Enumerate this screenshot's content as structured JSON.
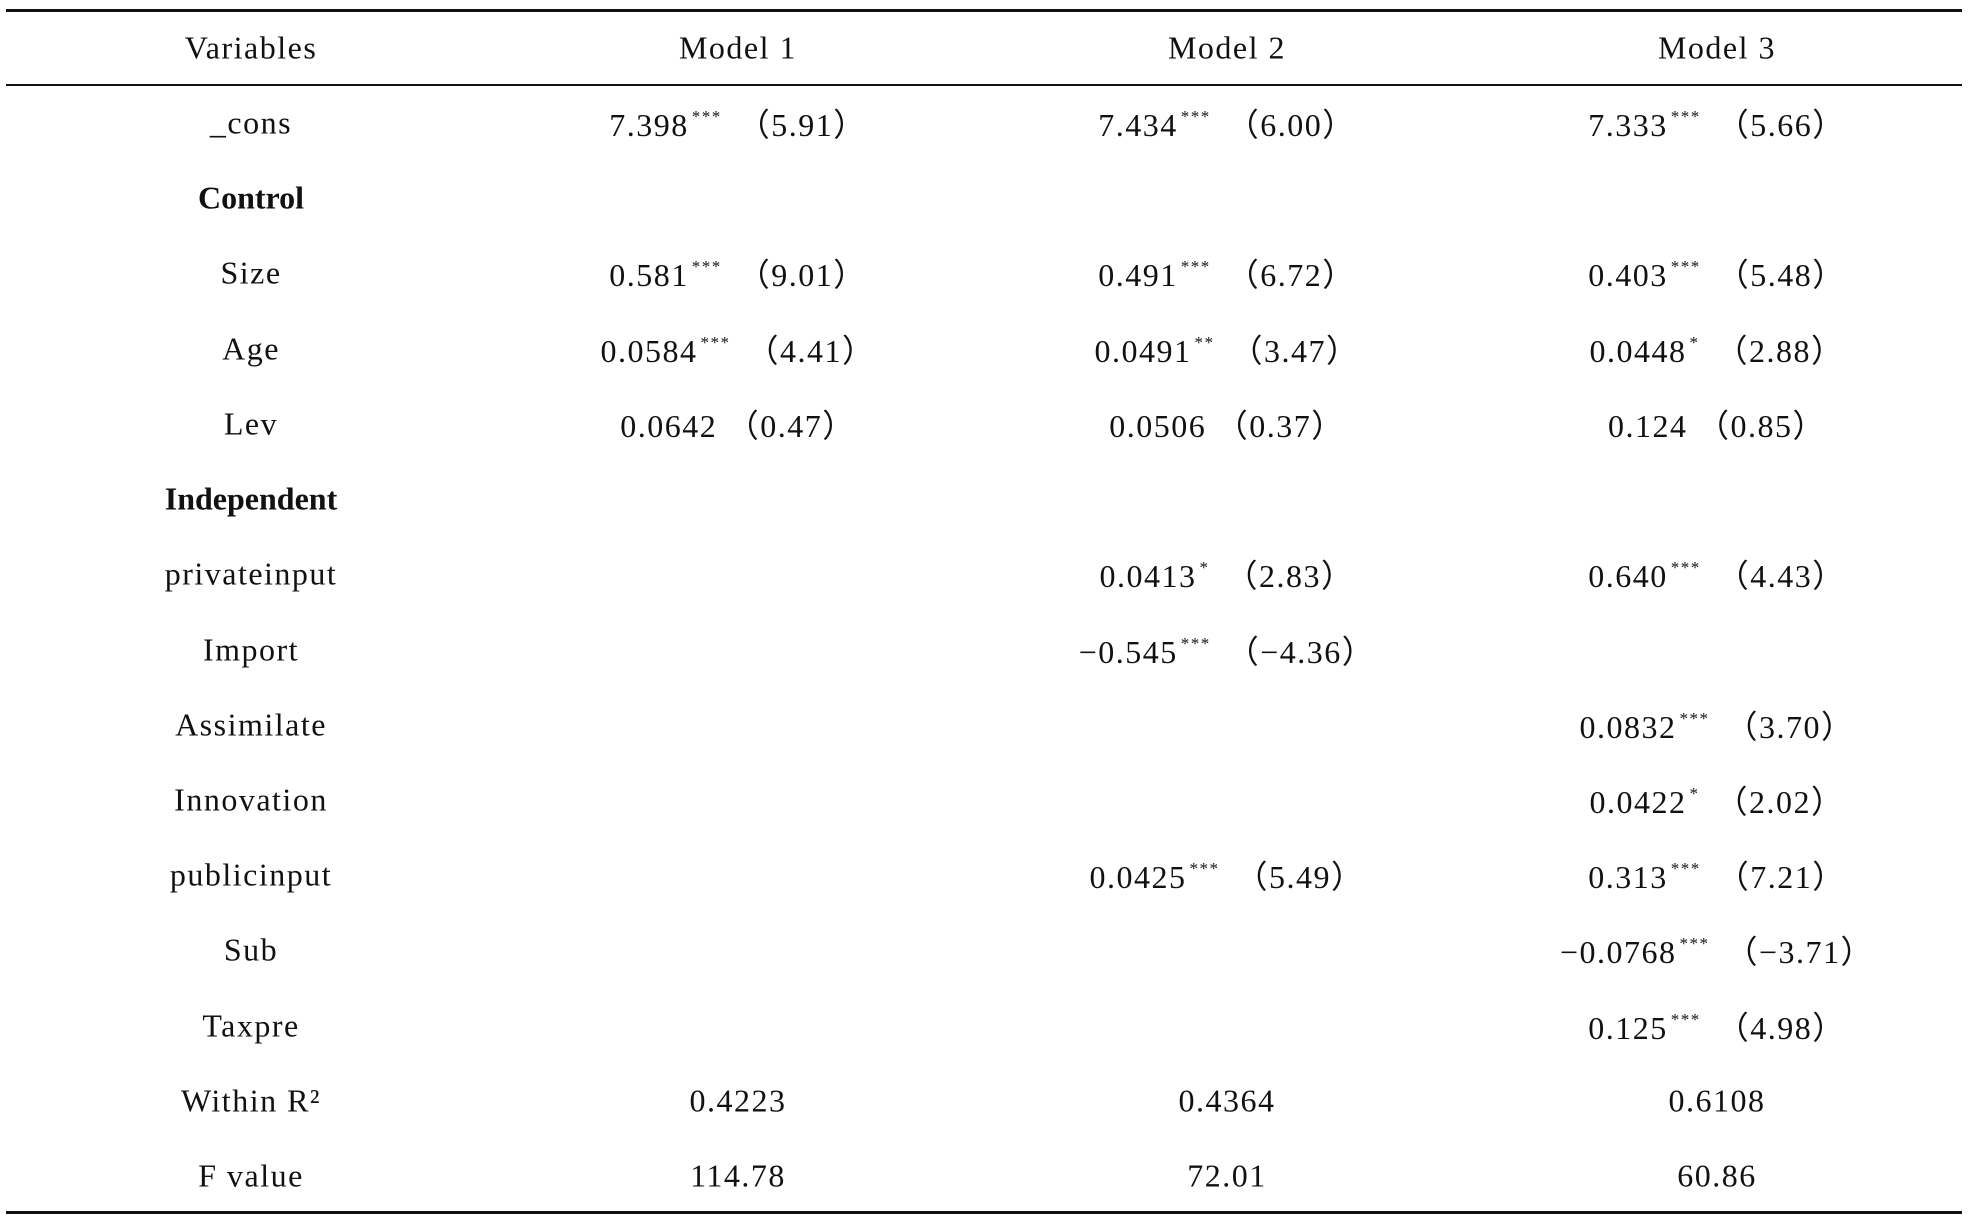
{
  "table": {
    "header": [
      "Variables",
      "Model 1",
      "Model 2",
      "Model 3"
    ],
    "rows": [
      {
        "label": "_cons",
        "cells": [
          {
            "coef": "7.398",
            "stars": "***",
            "t": "（5.91）"
          },
          {
            "coef": "7.434",
            "stars": "***",
            "t": "（6.00）"
          },
          {
            "coef": "7.333",
            "stars": "***",
            "t": "（5.66）"
          }
        ]
      },
      {
        "label": "Control",
        "section": true
      },
      {
        "label": "Size",
        "cells": [
          {
            "coef": "0.581",
            "stars": "***",
            "t": "（9.01）"
          },
          {
            "coef": "0.491",
            "stars": "***",
            "t": "（6.72）"
          },
          {
            "coef": "0.403",
            "stars": "***",
            "t": "（5.48）"
          }
        ]
      },
      {
        "label": "Age",
        "cells": [
          {
            "coef": "0.0584",
            "stars": "***",
            "t": "（4.41）"
          },
          {
            "coef": "0.0491",
            "stars": "**",
            "t": "（3.47）"
          },
          {
            "coef": "0.0448",
            "stars": "*",
            "t": "（2.88）"
          }
        ]
      },
      {
        "label": "Lev",
        "cells": [
          {
            "coef": "0.0642",
            "t": "（0.47）"
          },
          {
            "coef": "0.0506",
            "t": "（0.37）"
          },
          {
            "coef": "0.124",
            "t": "（0.85）"
          }
        ]
      },
      {
        "label": "Independent",
        "section": true
      },
      {
        "label": "privateinput",
        "cells": [
          null,
          {
            "coef": "0.0413",
            "stars": "*",
            "t": "（2.83）"
          },
          {
            "coef": "0.640",
            "stars": "***",
            "t": "（4.43）"
          }
        ]
      },
      {
        "label": "Import",
        "cells": [
          null,
          {
            "coef": "−0.545",
            "stars": "***",
            "t": "（−4.36）"
          },
          null
        ]
      },
      {
        "label": "Assimilate",
        "cells": [
          null,
          null,
          {
            "coef": "0.0832",
            "stars": "***",
            "t": "（3.70）"
          }
        ]
      },
      {
        "label": "Innovation",
        "cells": [
          null,
          null,
          {
            "coef": "0.0422",
            "stars": "*",
            "t": "（2.02）"
          }
        ]
      },
      {
        "label": "publicinput",
        "cells": [
          null,
          {
            "coef": "0.0425",
            "stars": "***",
            "t": "（5.49）"
          },
          {
            "coef": "0.313",
            "stars": "***",
            "t": "（7.21）"
          }
        ]
      },
      {
        "label": "Sub",
        "cells": [
          null,
          null,
          {
            "coef": "−0.0768",
            "stars": "***",
            "t": "（−3.71）"
          }
        ]
      },
      {
        "label": "Taxpre",
        "cells": [
          null,
          null,
          {
            "coef": "0.125",
            "stars": "***",
            "t": "（4.98）"
          }
        ]
      },
      {
        "label": "Within R²",
        "cells": [
          {
            "coef": "0.4223"
          },
          {
            "coef": "0.4364"
          },
          {
            "coef": "0.6108"
          }
        ]
      },
      {
        "label": "F value",
        "cells": [
          {
            "coef": "114.78"
          },
          {
            "coef": "72.01"
          },
          {
            "coef": "60.86"
          }
        ]
      }
    ]
  }
}
